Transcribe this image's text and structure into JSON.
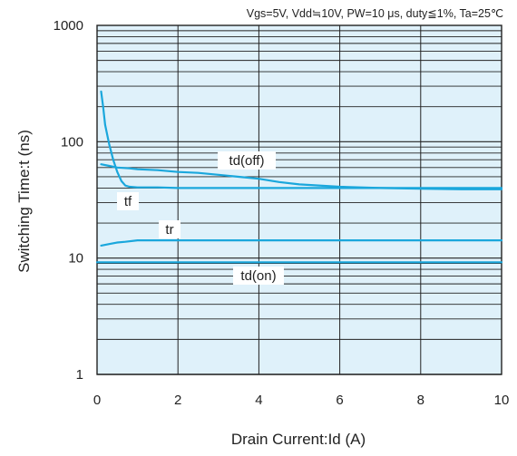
{
  "chart_data": {
    "type": "line",
    "title": "Vgs=5V, Vdd≒10V, PW=10 μs, duty≦1%, Ta=25℃",
    "xlabel": "Drain Current:Id  (A)",
    "ylabel": "Switching Time:t  (ns)",
    "xlim": [
      0,
      10
    ],
    "ylim": [
      1,
      1000
    ],
    "yscale": "log",
    "x_ticks": [
      "0",
      "2",
      "4",
      "6",
      "8",
      "10"
    ],
    "x_tick_values": [
      0,
      2,
      4,
      6,
      8,
      10
    ],
    "y_ticks": [
      "1",
      "10",
      "100",
      "1000"
    ],
    "y_tick_values": [
      1,
      10,
      100,
      1000
    ],
    "grid": true,
    "background_color": "#dff1fa",
    "series_color": "#1aa7dc",
    "series": [
      {
        "name": "td(off)",
        "x": [
          0.1,
          0.3,
          0.5,
          0.8,
          1.0,
          1.5,
          2.0,
          2.5,
          3.0,
          3.5,
          4.0,
          4.5,
          5.0,
          6.0,
          7.0,
          8.0,
          9.0,
          10.0
        ],
        "y": [
          64,
          62,
          60,
          59,
          58,
          57,
          55,
          54,
          52,
          50,
          48,
          45,
          43,
          41,
          40,
          39.5,
          39,
          39
        ]
      },
      {
        "name": "tf",
        "x": [
          0.1,
          0.15,
          0.2,
          0.3,
          0.4,
          0.5,
          0.6,
          0.7,
          0.8,
          1.0,
          1.5,
          2.0,
          4.0,
          6.0,
          8.0,
          10.0
        ],
        "y": [
          270,
          200,
          140,
          95,
          70,
          55,
          46,
          42,
          41,
          40.5,
          40.5,
          40,
          40,
          40,
          40,
          40
        ]
      },
      {
        "name": "tr",
        "x": [
          0.1,
          0.3,
          0.5,
          0.7,
          1.0,
          1.5,
          2.0,
          4.0,
          6.0,
          8.0,
          10.0
        ],
        "y": [
          12.8,
          13.2,
          13.6,
          13.8,
          14.2,
          14.2,
          14.2,
          14.2,
          14.2,
          14.2,
          14.2
        ]
      },
      {
        "name": "td(on)",
        "x": [
          0,
          10
        ],
        "y": [
          9.2,
          9.2
        ]
      }
    ]
  }
}
